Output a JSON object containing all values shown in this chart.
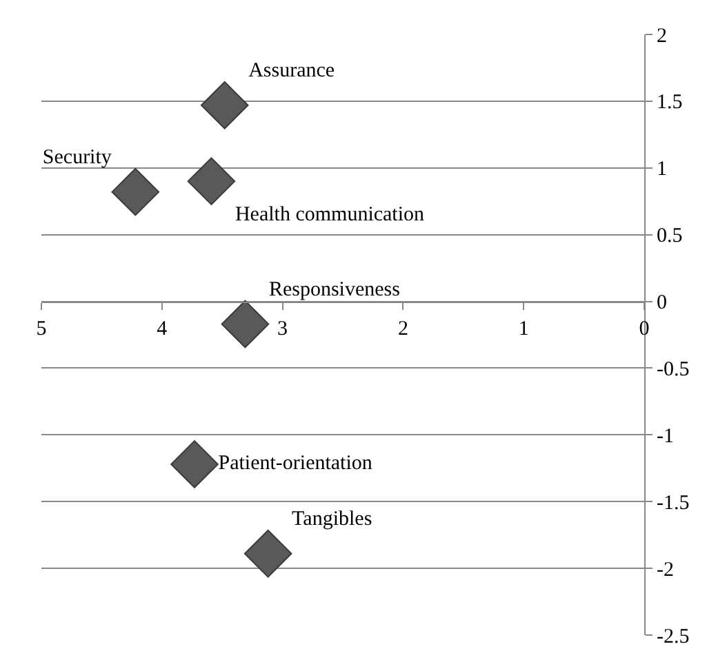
{
  "chart_data": {
    "type": "scatter",
    "marker": "diamond",
    "grid": "y",
    "legend": false,
    "xlim": [
      5,
      0
    ],
    "xticks": [
      5,
      4,
      3,
      2,
      1,
      0
    ],
    "ylim": [
      -2.5,
      2
    ],
    "yticks": [
      2,
      1.5,
      1,
      0.5,
      0,
      -0.5,
      -1,
      -1.5,
      -2,
      -2.5
    ],
    "series": [
      {
        "name": "Assurance",
        "color": "#595959",
        "x": [
          3.48
        ],
        "values": [
          1.47
        ]
      },
      {
        "name": "Security",
        "color": "#595959",
        "x": [
          4.22
        ],
        "values": [
          0.82
        ]
      },
      {
        "name": "Health communication",
        "color": "#595959",
        "x": [
          3.59
        ],
        "values": [
          0.9
        ]
      },
      {
        "name": "Responsiveness",
        "color": "#595959",
        "x": [
          3.31
        ],
        "values": [
          -0.17
        ]
      },
      {
        "name": "Patient-orientation",
        "color": "#595959",
        "x": [
          3.73
        ],
        "values": [
          -1.22
        ]
      },
      {
        "name": "Tangibles",
        "color": "#595959",
        "x": [
          3.12
        ],
        "values": [
          -1.89
        ]
      }
    ]
  }
}
